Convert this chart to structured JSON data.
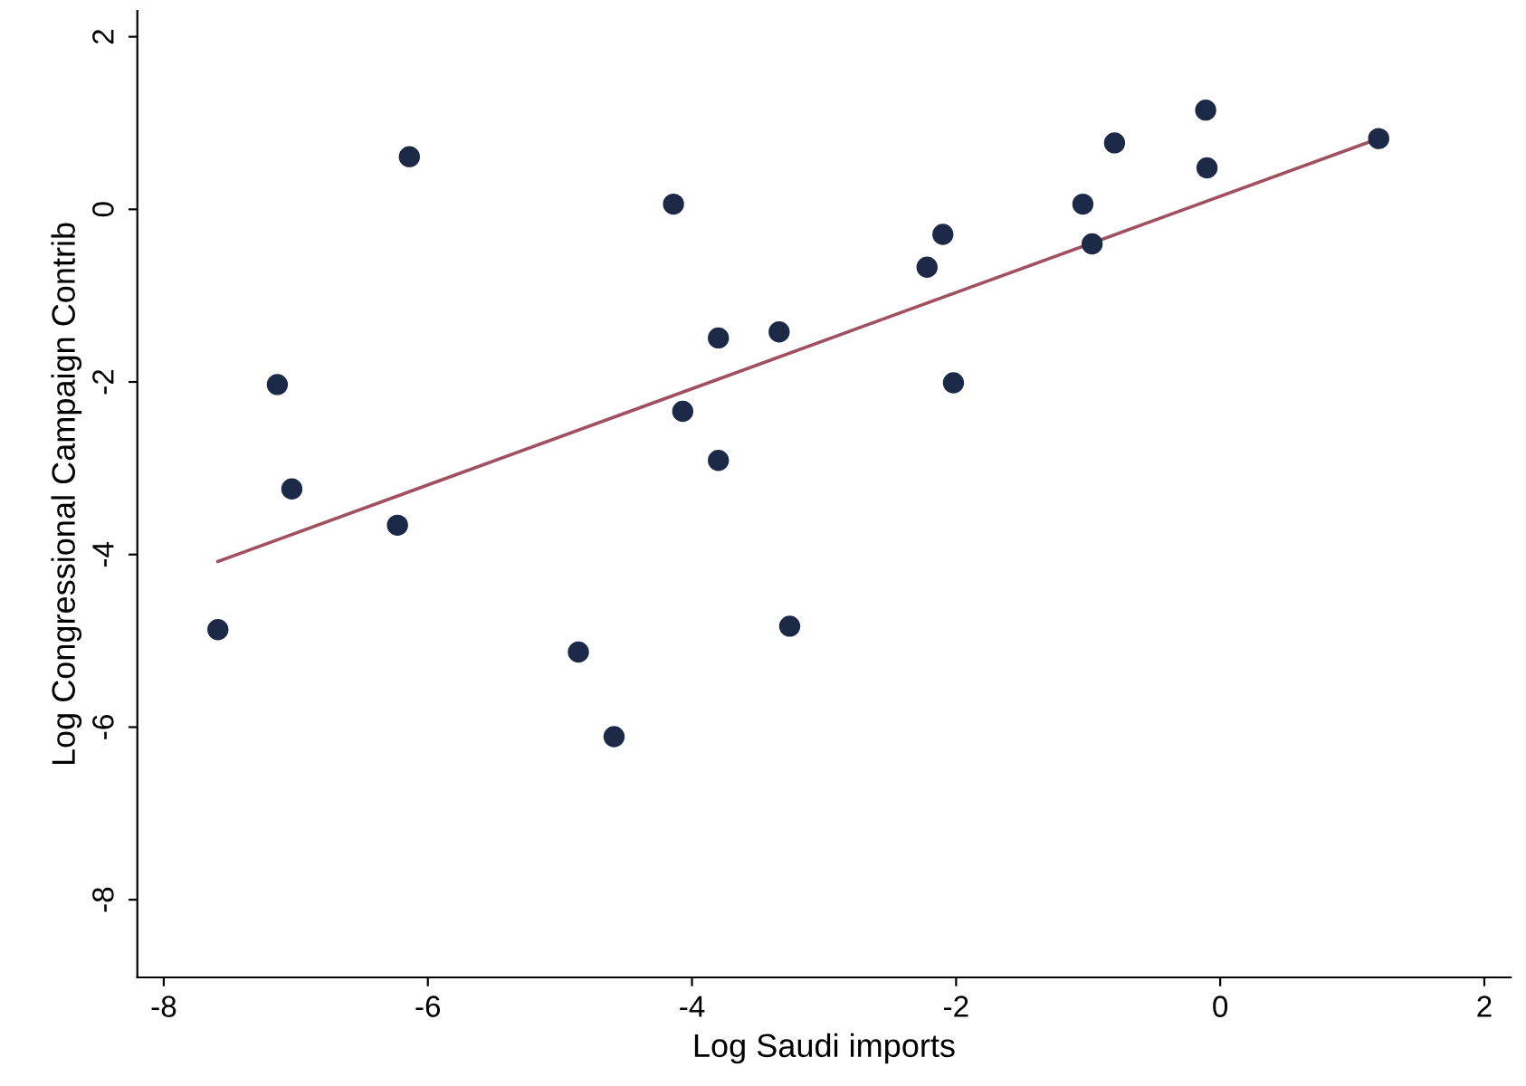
{
  "chart_data": {
    "type": "scatter",
    "xlabel": "Log Saudi imports",
    "ylabel": "Log Congressional Campaign Contrib",
    "xlim": [
      -8.2,
      2.2
    ],
    "ylim": [
      -8.9,
      2.3
    ],
    "xticks": [
      -8,
      -6,
      -4,
      -2,
      0,
      2
    ],
    "yticks": [
      -8,
      -6,
      -4,
      -2,
      0,
      2
    ],
    "grid": false,
    "legend": false,
    "series": [
      {
        "marker": "circle",
        "color": "#1c2a48",
        "x": [
          -7.59,
          -7.14,
          -7.03,
          -6.23,
          -6.14,
          -4.86,
          -4.59,
          -4.14,
          -4.07,
          -3.8,
          -3.8,
          -3.34,
          -3.26,
          -2.22,
          -2.1,
          -2.02,
          -1.04,
          -0.97,
          -0.8,
          -0.11,
          -0.1,
          1.2
        ],
        "values": [
          -4.87,
          -2.03,
          -3.24,
          -3.66,
          0.61,
          -5.13,
          -6.11,
          0.06,
          -2.34,
          -1.49,
          -2.91,
          -1.42,
          -4.83,
          -0.67,
          -0.29,
          -2.01,
          0.06,
          -0.4,
          0.77,
          1.15,
          0.48,
          0.82
        ]
      },
      {
        "type": "line",
        "marker": "none",
        "color": "#a05060",
        "x": [
          -7.59,
          1.2
        ],
        "values": [
          -4.08,
          0.82
        ]
      }
    ]
  }
}
